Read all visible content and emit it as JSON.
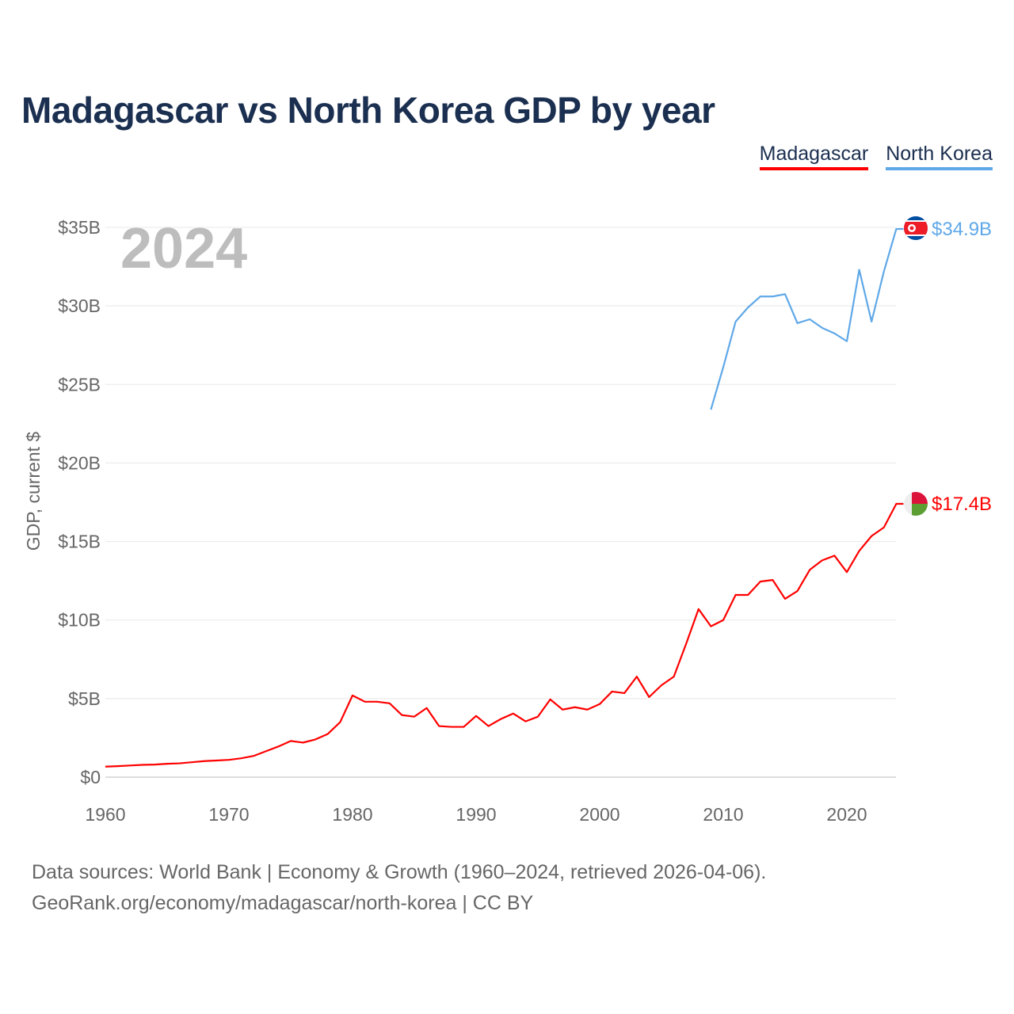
{
  "chart_data": {
    "type": "line",
    "title": "Madagascar vs North Korea GDP by year",
    "ylabel": "GDP, current $",
    "xlabel": "",
    "year_label": "2024",
    "xlim": [
      1960,
      2024
    ],
    "ylim": [
      0,
      35
    ],
    "x_ticks": [
      "1960",
      "1970",
      "1980",
      "1990",
      "2000",
      "2010",
      "2020"
    ],
    "y_ticks": [
      "$0",
      "$5B",
      "$10B",
      "$15B",
      "$20B",
      "$25B",
      "$30B",
      "$35B"
    ],
    "legend_position": "top-right",
    "series": [
      {
        "name": "Madagascar",
        "color": "#ff0000",
        "end_label": "$17.4B",
        "start_year": 1960,
        "values": [
          0.67,
          0.7,
          0.74,
          0.78,
          0.8,
          0.85,
          0.88,
          0.95,
          1.02,
          1.06,
          1.1,
          1.2,
          1.35,
          1.65,
          1.95,
          2.3,
          2.2,
          2.4,
          2.75,
          3.5,
          5.2,
          4.8,
          4.8,
          4.7,
          3.95,
          3.85,
          4.4,
          3.25,
          3.2,
          3.2,
          3.9,
          3.25,
          3.7,
          4.05,
          3.55,
          3.85,
          4.95,
          4.3,
          4.45,
          4.3,
          4.65,
          5.45,
          5.35,
          6.4,
          5.1,
          5.85,
          6.4,
          8.5,
          10.7,
          9.6,
          10.0,
          11.6,
          11.6,
          12.45,
          12.55,
          11.35,
          11.85,
          13.2,
          13.8,
          14.1,
          13.05,
          14.4,
          15.35,
          15.9,
          17.4
        ]
      },
      {
        "name": "North Korea",
        "color": "#5fa8e8",
        "end_label": "$34.9B",
        "start_year": 2009,
        "values": [
          23.4,
          26.1,
          29.0,
          29.9,
          30.6,
          30.6,
          30.75,
          28.9,
          29.15,
          28.6,
          28.25,
          27.75,
          32.3,
          29.0,
          32.2,
          34.9
        ]
      }
    ]
  },
  "footer": {
    "line1": "Data sources: World Bank | Economy & Growth (1960–2024, retrieved 2026-04-06).",
    "line2": "GeoRank.org/economy/madagascar/north-korea | CC BY"
  }
}
